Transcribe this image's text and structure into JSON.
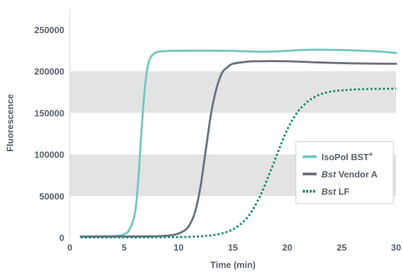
{
  "chart_data": {
    "type": "line",
    "title": "",
    "xlabel": "Time (min)",
    "ylabel": "Fluorescence",
    "xlim": [
      0,
      30
    ],
    "ylim": [
      0,
      250000
    ],
    "x_ticks": [
      "0",
      "5",
      "10",
      "15",
      "20",
      "25",
      "30"
    ],
    "y_ticks": [
      "0",
      "50000",
      "100000",
      "150000",
      "200000",
      "250000"
    ],
    "grid": "alternating horizontal bands",
    "legend_position": "right-center",
    "series": [
      {
        "name": "IsoPol BST+",
        "legend_label": {
          "main": "IsoPol BST",
          "superscript": "+"
        },
        "color": "#75c7c0",
        "style": "solid",
        "x": [
          1,
          4,
          5,
          5.5,
          6,
          6.3,
          6.6,
          6.9,
          7.2,
          7.5,
          8,
          8.5,
          9,
          10,
          12,
          15,
          18,
          22,
          25,
          28,
          30
        ],
        "y": [
          1200,
          1800,
          4000,
          10000,
          30000,
          70000,
          130000,
          180000,
          208000,
          218000,
          223000,
          224000,
          224500,
          224700,
          224800,
          224500,
          223500,
          225800,
          225500,
          224000,
          222000
        ]
      },
      {
        "name": "Bst Vendor A",
        "legend_label": {
          "italic": "Bst",
          "rest": " Vendor A"
        },
        "color": "#6b7280",
        "style": "solid",
        "x": [
          1,
          5,
          8,
          9.5,
          10.5,
          11,
          11.5,
          12,
          12.5,
          13,
          13.5,
          14,
          14.5,
          15,
          16,
          17,
          20,
          23,
          26,
          30
        ],
        "y": [
          1000,
          1200,
          1500,
          3000,
          8000,
          15000,
          30000,
          60000,
          105000,
          150000,
          180000,
          198000,
          205000,
          209000,
          211000,
          212000,
          212000,
          210500,
          209500,
          209000
        ]
      },
      {
        "name": "Bst LF",
        "legend_label": {
          "italic": "Bst",
          "rest": " LF"
        },
        "color": "#1c8f74",
        "style": "dotted",
        "x": [
          1,
          8,
          11,
          13,
          14.5,
          15.5,
          16.5,
          17.5,
          18.3,
          19,
          19.5,
          20,
          20.5,
          21,
          21.5,
          22,
          23,
          24,
          25,
          27,
          30
        ],
        "y": [
          0,
          200,
          800,
          2500,
          7000,
          14000,
          27000,
          50000,
          75000,
          98000,
          115000,
          130000,
          142000,
          152000,
          159000,
          165000,
          172000,
          175500,
          177000,
          178500,
          179000
        ]
      }
    ]
  }
}
